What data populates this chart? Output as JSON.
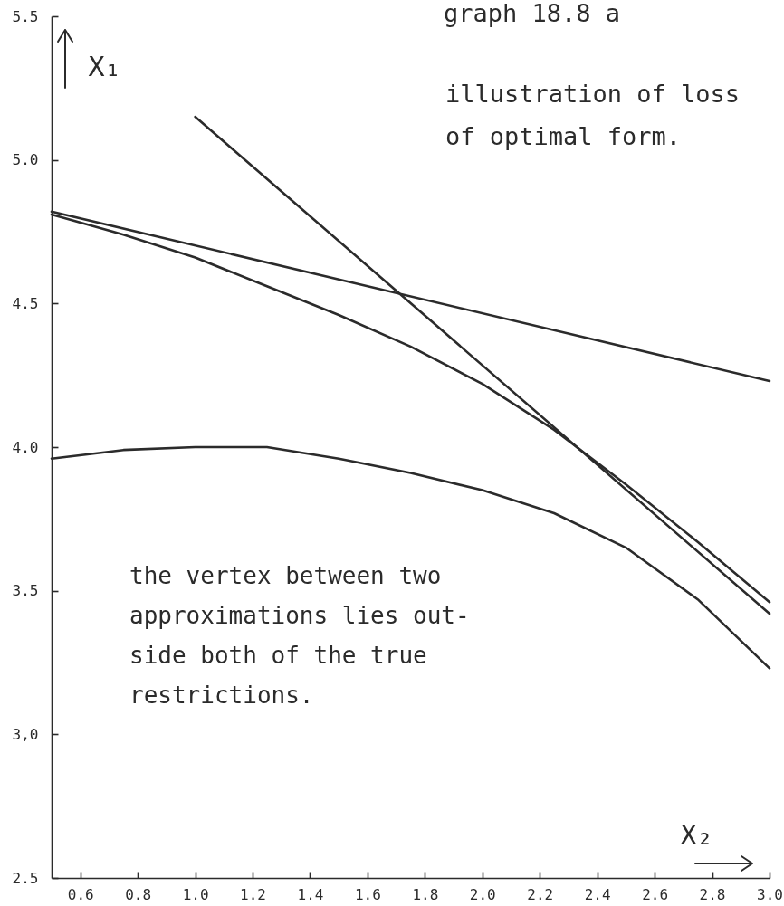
{
  "chart_data": {
    "type": "line",
    "title": "graph 18.8 a",
    "subtitle": "illustration of loss\nof optimal form.",
    "xlabel": "X₂",
    "ylabel": "X₁",
    "annotations": [
      "the vertex between two\napproximations lies out-\nside both of the true\nrestrictions."
    ],
    "series": [
      {
        "color": "#2b2b2b",
        "x": [
          0.5,
          3.0
        ],
        "values": [
          4.82,
          4.23
        ]
      },
      {
        "color": "#2b2b2b",
        "x": [
          0.5,
          0.75,
          1.0,
          1.25,
          1.5,
          1.75,
          2.0,
          2.25,
          2.5,
          2.75,
          3.0
        ],
        "values": [
          4.81,
          4.74,
          4.66,
          4.56,
          4.46,
          4.35,
          4.22,
          4.06,
          3.87,
          3.67,
          3.46
        ]
      },
      {
        "color": "#2b2b2b",
        "x": [
          1.0,
          3.0
        ],
        "values": [
          5.15,
          3.42
        ]
      },
      {
        "color": "#2b2b2b",
        "x": [
          0.5,
          0.75,
          1.0,
          1.25,
          1.5,
          1.75,
          2.0,
          2.25,
          2.5,
          2.75,
          3.0
        ],
        "values": [
          3.96,
          3.99,
          4.0,
          4.0,
          3.96,
          3.91,
          3.85,
          3.77,
          3.65,
          3.47,
          3.23
        ]
      }
    ],
    "xlim": [
      0.5,
      3.0
    ],
    "xticks": [
      0.6,
      0.8,
      {
        "value": 1,
        "label": "1.0"
      },
      1.2,
      1.4,
      1.6,
      1.8,
      {
        "value": 2,
        "label": "2.0"
      },
      2.2,
      2.4,
      2.6,
      2.8,
      {
        "value": 3,
        "label": "3.0"
      }
    ],
    "ylim": [
      2.5,
      5.5
    ],
    "yticks": [
      2.5,
      {
        "value": 3,
        "label": "3,0"
      },
      3.5,
      {
        "value": 4,
        "label": "4.0"
      },
      4.5,
      {
        "value": 5,
        "label": "5.0"
      },
      5.5
    ]
  }
}
